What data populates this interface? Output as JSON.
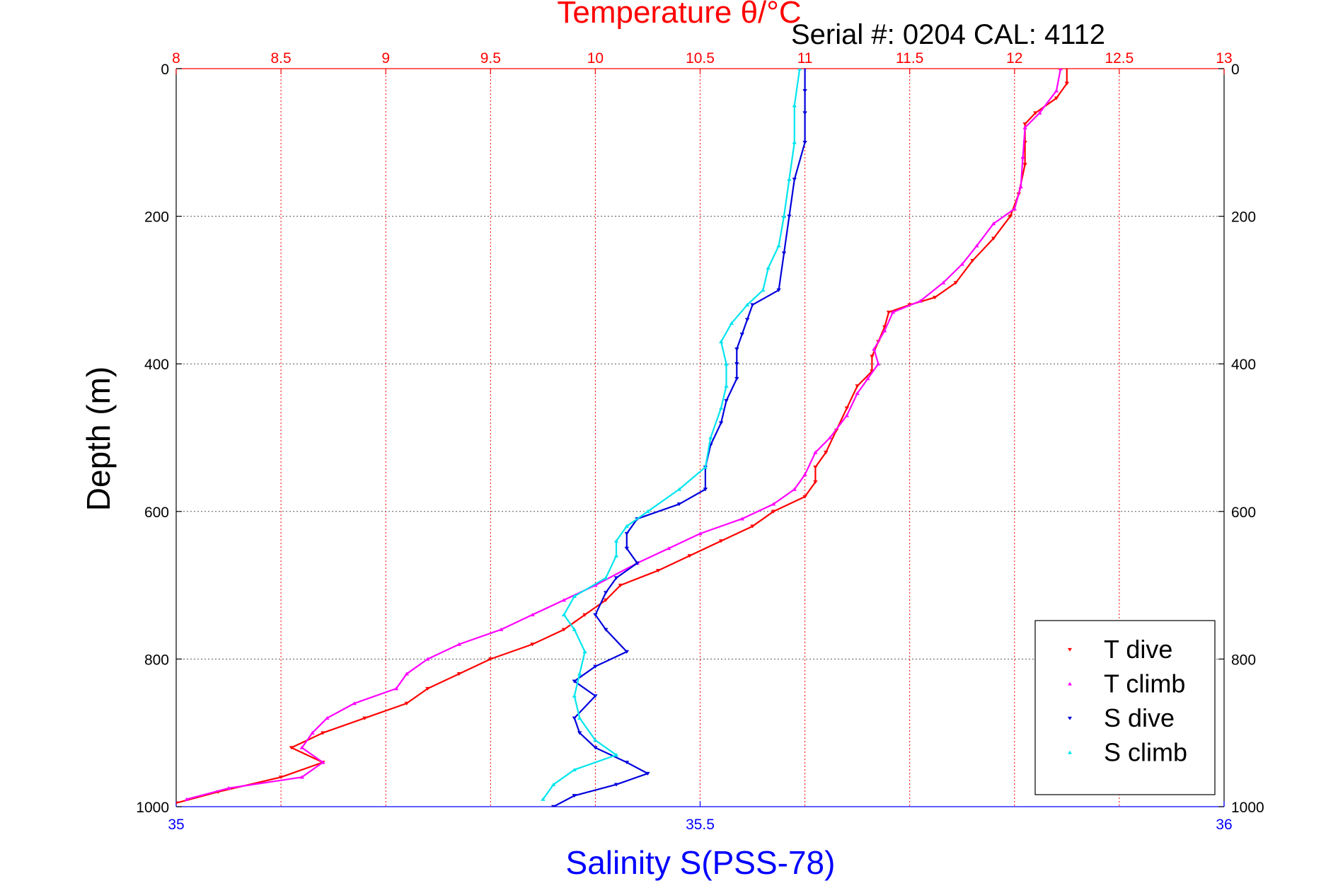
{
  "chart_data": {
    "type": "scatter",
    "title": "Temperature θ/°C",
    "subtitle": "Serial #: 0204  CAL: 4112",
    "ylabel": "Depth (m)",
    "xlabel_bottom": "Salinity S(PSS-78)",
    "xlabel_top": "Temperature θ/°C",
    "y_reversed": true,
    "ylim": [
      0,
      1000
    ],
    "x_top_lim": [
      8,
      13
    ],
    "x_bottom_lim": [
      35,
      36
    ],
    "y_ticks": [
      "0",
      "200",
      "400",
      "600",
      "800",
      "1000"
    ],
    "x_top_ticks": [
      "8",
      "8.5",
      "9",
      "9.5",
      "10",
      "10.5",
      "11",
      "11.5",
      "12",
      "12.5",
      "13"
    ],
    "x_bottom_ticks": [
      "35",
      "35.5",
      "36"
    ],
    "grid": true,
    "legend_position": "bottom-right",
    "colors": {
      "temperature_axis": "#ff0000",
      "salinity_axis": "#0000ff",
      "t_dive": "#ff0000",
      "t_climb": "#ff00ff",
      "s_dive": "#0000dd",
      "s_climb": "#00e5ee"
    },
    "series": [
      {
        "name": "T dive",
        "axis": "temperature",
        "marker": "down-triangle",
        "color": "#ff0000",
        "points": [
          [
            12.25,
            0
          ],
          [
            12.25,
            20
          ],
          [
            12.2,
            40
          ],
          [
            12.1,
            60
          ],
          [
            12.05,
            75
          ],
          [
            12.05,
            100
          ],
          [
            12.05,
            130
          ],
          [
            12.02,
            170
          ],
          [
            11.98,
            200
          ],
          [
            11.9,
            230
          ],
          [
            11.8,
            260
          ],
          [
            11.72,
            290
          ],
          [
            11.62,
            310
          ],
          [
            11.5,
            320
          ],
          [
            11.4,
            330
          ],
          [
            11.38,
            350
          ],
          [
            11.35,
            370
          ],
          [
            11.32,
            390
          ],
          [
            11.32,
            410
          ],
          [
            11.25,
            430
          ],
          [
            11.2,
            460
          ],
          [
            11.15,
            490
          ],
          [
            11.1,
            520
          ],
          [
            11.05,
            540
          ],
          [
            11.05,
            560
          ],
          [
            11.0,
            580
          ],
          [
            10.85,
            600
          ],
          [
            10.75,
            620
          ],
          [
            10.6,
            640
          ],
          [
            10.45,
            660
          ],
          [
            10.3,
            680
          ],
          [
            10.12,
            700
          ],
          [
            10.05,
            720
          ],
          [
            9.95,
            740
          ],
          [
            9.85,
            760
          ],
          [
            9.7,
            780
          ],
          [
            9.5,
            800
          ],
          [
            9.35,
            820
          ],
          [
            9.2,
            840
          ],
          [
            9.1,
            860
          ],
          [
            8.9,
            880
          ],
          [
            8.7,
            900
          ],
          [
            8.55,
            920
          ],
          [
            8.7,
            940
          ],
          [
            8.5,
            960
          ],
          [
            8.2,
            980
          ],
          [
            8.0,
            995
          ]
        ]
      },
      {
        "name": "T climb",
        "axis": "temperature",
        "marker": "up-triangle",
        "color": "#ff00ff",
        "points": [
          [
            12.22,
            0
          ],
          [
            12.2,
            30
          ],
          [
            12.12,
            60
          ],
          [
            12.05,
            80
          ],
          [
            12.04,
            120
          ],
          [
            12.03,
            160
          ],
          [
            12.0,
            190
          ],
          [
            11.9,
            210
          ],
          [
            11.82,
            240
          ],
          [
            11.75,
            265
          ],
          [
            11.66,
            290
          ],
          [
            11.55,
            315
          ],
          [
            11.42,
            330
          ],
          [
            11.38,
            355
          ],
          [
            11.33,
            380
          ],
          [
            11.35,
            400
          ],
          [
            11.3,
            420
          ],
          [
            11.25,
            440
          ],
          [
            11.2,
            470
          ],
          [
            11.12,
            500
          ],
          [
            11.05,
            520
          ],
          [
            11.0,
            550
          ],
          [
            10.95,
            570
          ],
          [
            10.85,
            590
          ],
          [
            10.7,
            610
          ],
          [
            10.5,
            630
          ],
          [
            10.35,
            650
          ],
          [
            10.2,
            670
          ],
          [
            10.0,
            700
          ],
          [
            9.85,
            720
          ],
          [
            9.7,
            740
          ],
          [
            9.55,
            760
          ],
          [
            9.35,
            780
          ],
          [
            9.2,
            800
          ],
          [
            9.1,
            820
          ],
          [
            9.05,
            840
          ],
          [
            8.85,
            860
          ],
          [
            8.72,
            880
          ],
          [
            8.65,
            900
          ],
          [
            8.6,
            920
          ],
          [
            8.7,
            940
          ],
          [
            8.6,
            960
          ],
          [
            8.25,
            975
          ],
          [
            8.05,
            990
          ]
        ]
      },
      {
        "name": "S dive",
        "axis": "salinity",
        "marker": "down-triangle",
        "color": "#0000dd",
        "points": [
          [
            35.6,
            0
          ],
          [
            35.6,
            30
          ],
          [
            35.6,
            60
          ],
          [
            35.6,
            100
          ],
          [
            35.59,
            150
          ],
          [
            35.585,
            200
          ],
          [
            35.58,
            250
          ],
          [
            35.575,
            300
          ],
          [
            35.55,
            320
          ],
          [
            35.545,
            340
          ],
          [
            35.54,
            360
          ],
          [
            35.535,
            380
          ],
          [
            35.535,
            400
          ],
          [
            35.535,
            420
          ],
          [
            35.525,
            450
          ],
          [
            35.52,
            480
          ],
          [
            35.51,
            510
          ],
          [
            35.505,
            540
          ],
          [
            35.505,
            570
          ],
          [
            35.48,
            590
          ],
          [
            35.44,
            610
          ],
          [
            35.43,
            630
          ],
          [
            35.43,
            650
          ],
          [
            35.44,
            670
          ],
          [
            35.42,
            690
          ],
          [
            35.41,
            710
          ],
          [
            35.4,
            740
          ],
          [
            35.41,
            760
          ],
          [
            35.43,
            790
          ],
          [
            35.4,
            810
          ],
          [
            35.38,
            830
          ],
          [
            35.4,
            850
          ],
          [
            35.38,
            880
          ],
          [
            35.385,
            900
          ],
          [
            35.4,
            920
          ],
          [
            35.43,
            940
          ],
          [
            35.45,
            955
          ],
          [
            35.42,
            970
          ],
          [
            35.38,
            985
          ],
          [
            35.36,
            1000
          ]
        ]
      },
      {
        "name": "S climb",
        "axis": "salinity",
        "marker": "up-triangle",
        "color": "#00e5ee",
        "points": [
          [
            35.595,
            0
          ],
          [
            35.59,
            50
          ],
          [
            35.59,
            100
          ],
          [
            35.585,
            150
          ],
          [
            35.58,
            200
          ],
          [
            35.575,
            240
          ],
          [
            35.565,
            270
          ],
          [
            35.56,
            300
          ],
          [
            35.545,
            320
          ],
          [
            35.53,
            345
          ],
          [
            35.52,
            370
          ],
          [
            35.525,
            400
          ],
          [
            35.525,
            430
          ],
          [
            35.52,
            460
          ],
          [
            35.51,
            500
          ],
          [
            35.505,
            540
          ],
          [
            35.48,
            570
          ],
          [
            35.45,
            600
          ],
          [
            35.43,
            620
          ],
          [
            35.42,
            640
          ],
          [
            35.42,
            660
          ],
          [
            35.41,
            690
          ],
          [
            35.38,
            715
          ],
          [
            35.37,
            740
          ],
          [
            35.38,
            760
          ],
          [
            35.39,
            790
          ],
          [
            35.385,
            820
          ],
          [
            35.38,
            850
          ],
          [
            35.385,
            880
          ],
          [
            35.4,
            910
          ],
          [
            35.42,
            930
          ],
          [
            35.38,
            950
          ],
          [
            35.36,
            970
          ],
          [
            35.35,
            990
          ]
        ]
      }
    ]
  }
}
